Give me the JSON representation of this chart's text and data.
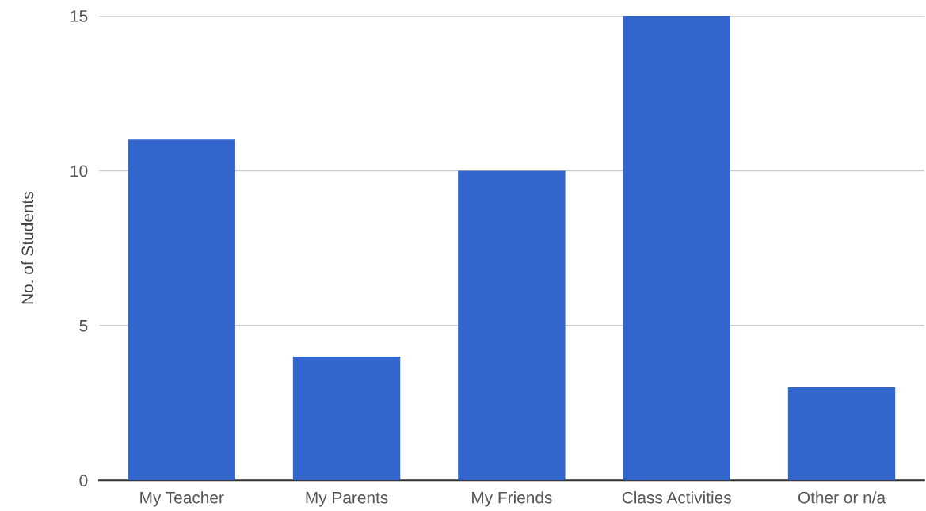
{
  "chart_data": {
    "type": "bar",
    "ylabel": "No. of Students",
    "categories": [
      "My Teacher",
      "My Parents",
      "My Friends",
      "Class Activities",
      "Other or n/a"
    ],
    "values": [
      11,
      4,
      10,
      15,
      3
    ],
    "color": "#3366cc",
    "ylim": [
      0,
      15
    ],
    "yticks": [
      0,
      5,
      10,
      15
    ],
    "grid": "y"
  }
}
